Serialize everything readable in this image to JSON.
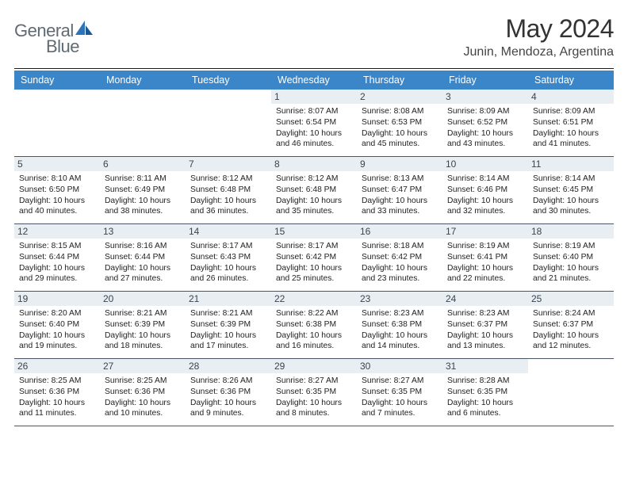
{
  "brand": {
    "name1": "General",
    "name2": "Blue"
  },
  "colors": {
    "header_bg": "#3a86c8",
    "header_text": "#ffffff",
    "daynum_bg": "#e9eef2",
    "daynum_text": "#3a4550",
    "rule": "#4a5568",
    "brand_text": "#5f6a72",
    "brand_accent": "#2d73b5"
  },
  "title": "May 2024",
  "location": "Junin, Mendoza, Argentina",
  "dayHeaders": [
    "Sunday",
    "Monday",
    "Tuesday",
    "Wednesday",
    "Thursday",
    "Friday",
    "Saturday"
  ],
  "weeks": [
    [
      null,
      null,
      null,
      {
        "d": "1",
        "sr": "8:07 AM",
        "ss": "6:54 PM",
        "dl": "10 hours and 46 minutes."
      },
      {
        "d": "2",
        "sr": "8:08 AM",
        "ss": "6:53 PM",
        "dl": "10 hours and 45 minutes."
      },
      {
        "d": "3",
        "sr": "8:09 AM",
        "ss": "6:52 PM",
        "dl": "10 hours and 43 minutes."
      },
      {
        "d": "4",
        "sr": "8:09 AM",
        "ss": "6:51 PM",
        "dl": "10 hours and 41 minutes."
      }
    ],
    [
      {
        "d": "5",
        "sr": "8:10 AM",
        "ss": "6:50 PM",
        "dl": "10 hours and 40 minutes."
      },
      {
        "d": "6",
        "sr": "8:11 AM",
        "ss": "6:49 PM",
        "dl": "10 hours and 38 minutes."
      },
      {
        "d": "7",
        "sr": "8:12 AM",
        "ss": "6:48 PM",
        "dl": "10 hours and 36 minutes."
      },
      {
        "d": "8",
        "sr": "8:12 AM",
        "ss": "6:48 PM",
        "dl": "10 hours and 35 minutes."
      },
      {
        "d": "9",
        "sr": "8:13 AM",
        "ss": "6:47 PM",
        "dl": "10 hours and 33 minutes."
      },
      {
        "d": "10",
        "sr": "8:14 AM",
        "ss": "6:46 PM",
        "dl": "10 hours and 32 minutes."
      },
      {
        "d": "11",
        "sr": "8:14 AM",
        "ss": "6:45 PM",
        "dl": "10 hours and 30 minutes."
      }
    ],
    [
      {
        "d": "12",
        "sr": "8:15 AM",
        "ss": "6:44 PM",
        "dl": "10 hours and 29 minutes."
      },
      {
        "d": "13",
        "sr": "8:16 AM",
        "ss": "6:44 PM",
        "dl": "10 hours and 27 minutes."
      },
      {
        "d": "14",
        "sr": "8:17 AM",
        "ss": "6:43 PM",
        "dl": "10 hours and 26 minutes."
      },
      {
        "d": "15",
        "sr": "8:17 AM",
        "ss": "6:42 PM",
        "dl": "10 hours and 25 minutes."
      },
      {
        "d": "16",
        "sr": "8:18 AM",
        "ss": "6:42 PM",
        "dl": "10 hours and 23 minutes."
      },
      {
        "d": "17",
        "sr": "8:19 AM",
        "ss": "6:41 PM",
        "dl": "10 hours and 22 minutes."
      },
      {
        "d": "18",
        "sr": "8:19 AM",
        "ss": "6:40 PM",
        "dl": "10 hours and 21 minutes."
      }
    ],
    [
      {
        "d": "19",
        "sr": "8:20 AM",
        "ss": "6:40 PM",
        "dl": "10 hours and 19 minutes."
      },
      {
        "d": "20",
        "sr": "8:21 AM",
        "ss": "6:39 PM",
        "dl": "10 hours and 18 minutes."
      },
      {
        "d": "21",
        "sr": "8:21 AM",
        "ss": "6:39 PM",
        "dl": "10 hours and 17 minutes."
      },
      {
        "d": "22",
        "sr": "8:22 AM",
        "ss": "6:38 PM",
        "dl": "10 hours and 16 minutes."
      },
      {
        "d": "23",
        "sr": "8:23 AM",
        "ss": "6:38 PM",
        "dl": "10 hours and 14 minutes."
      },
      {
        "d": "24",
        "sr": "8:23 AM",
        "ss": "6:37 PM",
        "dl": "10 hours and 13 minutes."
      },
      {
        "d": "25",
        "sr": "8:24 AM",
        "ss": "6:37 PM",
        "dl": "10 hours and 12 minutes."
      }
    ],
    [
      {
        "d": "26",
        "sr": "8:25 AM",
        "ss": "6:36 PM",
        "dl": "10 hours and 11 minutes."
      },
      {
        "d": "27",
        "sr": "8:25 AM",
        "ss": "6:36 PM",
        "dl": "10 hours and 10 minutes."
      },
      {
        "d": "28",
        "sr": "8:26 AM",
        "ss": "6:36 PM",
        "dl": "10 hours and 9 minutes."
      },
      {
        "d": "29",
        "sr": "8:27 AM",
        "ss": "6:35 PM",
        "dl": "10 hours and 8 minutes."
      },
      {
        "d": "30",
        "sr": "8:27 AM",
        "ss": "6:35 PM",
        "dl": "10 hours and 7 minutes."
      },
      {
        "d": "31",
        "sr": "8:28 AM",
        "ss": "6:35 PM",
        "dl": "10 hours and 6 minutes."
      },
      null
    ]
  ],
  "labels": {
    "sunrise": "Sunrise: ",
    "sunset": "Sunset: ",
    "daylight": "Daylight: "
  }
}
